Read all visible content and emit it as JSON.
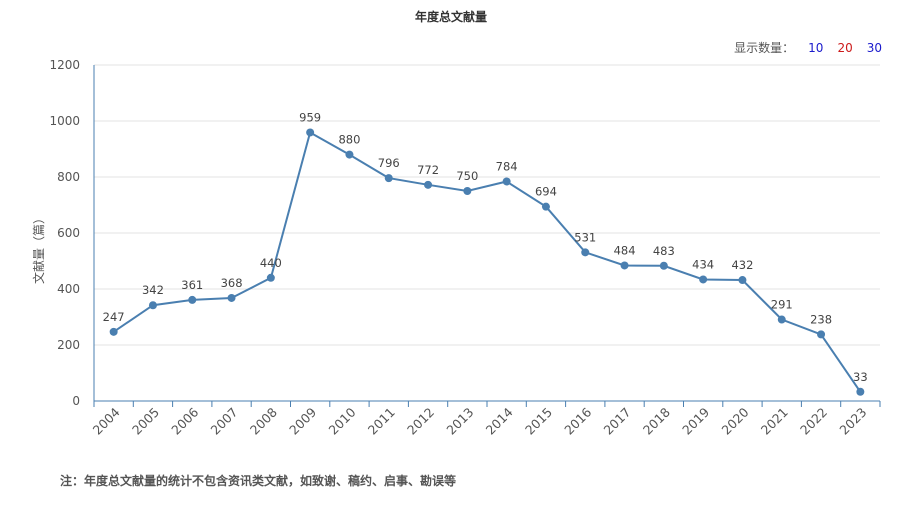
{
  "chart_data": {
    "type": "line",
    "title": "年度总文献量",
    "ylabel": "文献量（篇）",
    "xlabel": "",
    "categories": [
      "2004",
      "2005",
      "2006",
      "2007",
      "2008",
      "2009",
      "2010",
      "2011",
      "2012",
      "2013",
      "2014",
      "2015",
      "2016",
      "2017",
      "2018",
      "2019",
      "2020",
      "2021",
      "2022",
      "2023"
    ],
    "values": [
      247,
      342,
      361,
      368,
      440,
      959,
      880,
      796,
      772,
      750,
      784,
      694,
      531,
      484,
      483,
      434,
      432,
      291,
      238,
      33
    ],
    "ylim": [
      0,
      1200
    ],
    "yticks": [
      "0",
      "200",
      "400",
      "600",
      "800",
      "1000",
      "1200"
    ],
    "grid": true,
    "line_color": "#4a7fb0"
  },
  "display_count": {
    "label": "显示数量：",
    "options": [
      {
        "label": "10",
        "color": "#1a1acc"
      },
      {
        "label": "20",
        "color": "#cc1a1a"
      },
      {
        "label": "30",
        "color": "#1a1acc"
      }
    ]
  },
  "note": "注：年度总文献量的统计不包含资讯类文献，如致谢、稿约、启事、勘误等"
}
